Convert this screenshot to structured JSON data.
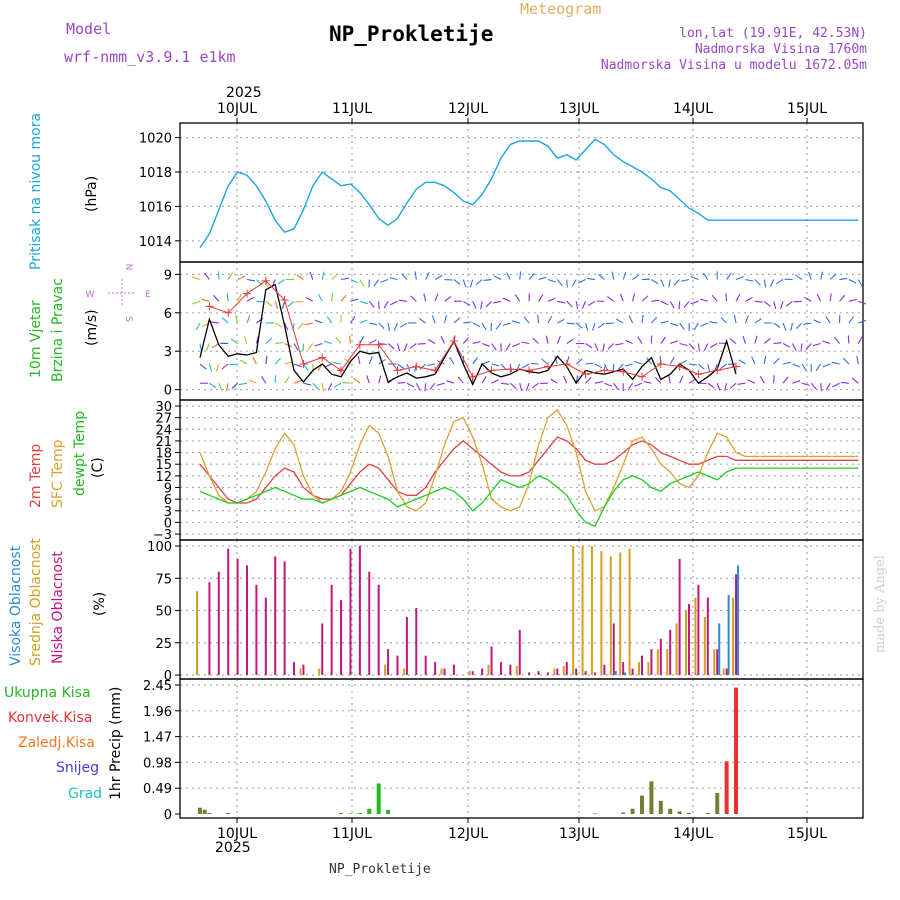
{
  "header": {
    "model_label": "Model",
    "model_name": "wrf-nmm_v3.9.1 e1km",
    "station": "NP_Prokletije",
    "meteogram": "Meteogram",
    "lonlat": "lon,lat (19.91E, 42.53N)",
    "elevation": "Nadmorska Visina 1760m",
    "model_elevation": "Nadmorska Visina u modelu 1672.05m",
    "footer_station": "NP_Prokletije",
    "watermark": "made by Angel"
  },
  "colors": {
    "pressure": "#1aa6e0",
    "wind_speed": "#000000",
    "gust": "#e83a3a",
    "temp2m": "#e04040",
    "sfc_temp": "#e0a030",
    "dewpoint": "#22cc22",
    "high_cloud": "#2e8bd8",
    "mid_cloud": "#d4a020",
    "low_cloud": "#c0167e",
    "total_precip": "#22b822",
    "conv_precip": "#e83030",
    "strat_precip": "#f07820",
    "snow": "#4040d8",
    "hail": "#22c0c0",
    "precip_bar": "#708030"
  },
  "time_axis": {
    "top_year": "2025",
    "bottom_year": "2025",
    "days": [
      "10JUL",
      "11JUL",
      "12JUL",
      "13JUL",
      "14JUL",
      "15JUL"
    ]
  },
  "panels": {
    "pressure": {
      "labels": [
        "Pritisak na nivou mora"
      ],
      "unit": "(hPa)"
    },
    "wind": {
      "labels": [
        "10m Vjetar",
        "Brzina i Pravac"
      ],
      "unit": "(m/s)",
      "compass": {
        "n": "N",
        "s": "S",
        "e": "E",
        "w": "W"
      }
    },
    "temp": {
      "labels": [
        "2m Temp",
        "SFC Temp",
        "dewpt Temp"
      ],
      "unit": "(C)"
    },
    "cloud": {
      "labels": [
        "Visoka Oblacnost",
        "Srednja Oblacnost",
        "Niska Oblacnost"
      ],
      "unit": "(%)"
    },
    "precip": {
      "labels": [
        "Ukupna Kisa",
        "Konvek.Kisa",
        "Zaledj.Kisa",
        "Snijeg",
        "Grad"
      ],
      "unit": "1hr Precip (mm)"
    }
  },
  "chart_data": [
    {
      "type": "line",
      "name": "pressure",
      "ylim": [
        1013,
        1020.5
      ],
      "yticks": [
        "1014",
        "1016",
        "1018",
        "1020"
      ],
      "x_hours": [
        0,
        2,
        4,
        6,
        8,
        10,
        12,
        14,
        16,
        18,
        20,
        22,
        24,
        26,
        28,
        30,
        32,
        34,
        36,
        38,
        40,
        42,
        44,
        46,
        48,
        50,
        52,
        54,
        56,
        58,
        60,
        62,
        64,
        66,
        68,
        70,
        72,
        74,
        76,
        78,
        80,
        82,
        84,
        86,
        88,
        90,
        92,
        94,
        96,
        98,
        100,
        102,
        104,
        106,
        108,
        110,
        112,
        114,
        116,
        118,
        120,
        122,
        124,
        126,
        128,
        130,
        132,
        134,
        136,
        138,
        140
      ],
      "values": [
        1013.6,
        1014.4,
        1015.8,
        1017.2,
        1018.0,
        1017.8,
        1017.2,
        1016.3,
        1015.2,
        1014.5,
        1014.7,
        1015.8,
        1017.2,
        1018.0,
        1017.6,
        1017.2,
        1017.3,
        1016.8,
        1016.1,
        1015.3,
        1014.9,
        1015.3,
        1016.2,
        1017.0,
        1017.4,
        1017.4,
        1017.2,
        1016.8,
        1016.3,
        1016.1,
        1016.7,
        1017.6,
        1018.8,
        1019.6,
        1019.8,
        1019.8,
        1019.8,
        1019.5,
        1018.8,
        1019.0,
        1018.7,
        1019.3,
        1019.9,
        1019.6,
        1019.0,
        1018.6,
        1018.3,
        1018.0,
        1017.6,
        1017.1,
        1016.9,
        1016.4,
        1015.9,
        1015.6,
        1015.2,
        1015.2,
        1015.2,
        1015.2,
        1015.2,
        1015.2,
        1015.2,
        1015.2,
        1015.2,
        1015.2,
        1015.2,
        1015.2,
        1015.2,
        1015.2,
        1015.2,
        1015.2,
        1015.2
      ]
    },
    {
      "type": "line",
      "name": "wind",
      "ylim": [
        -0.5,
        9.5
      ],
      "yticks": [
        "0",
        "3",
        "6",
        "9"
      ],
      "series": [
        {
          "name": "10m Vjetar",
          "x_hours": [
            0,
            2,
            4,
            6,
            8,
            10,
            12,
            14,
            16,
            18,
            20,
            22,
            24,
            26,
            28,
            30,
            32,
            34,
            36,
            38,
            40,
            42,
            44,
            46,
            48,
            50,
            52,
            54,
            56,
            58,
            60,
            62,
            64,
            66,
            68,
            70,
            72,
            74,
            76,
            78,
            80,
            82,
            84,
            86,
            88,
            90,
            92,
            94,
            96,
            98,
            100,
            102,
            104,
            106,
            108,
            110,
            112,
            114
          ],
          "values": [
            2.5,
            5.5,
            3.5,
            2.6,
            2.8,
            2.7,
            2.9,
            7.8,
            8.2,
            5.0,
            1.5,
            0.6,
            1.5,
            2.0,
            1.2,
            1.0,
            2.2,
            3.0,
            2.8,
            2.9,
            0.6,
            1.0,
            1.3,
            0.9,
            1.0,
            1.2,
            2.5,
            3.8,
            2.0,
            0.4,
            2.0,
            1.3,
            1.0,
            1.2,
            1.6,
            1.4,
            1.3,
            1.5,
            2.6,
            1.8,
            0.5,
            1.5,
            1.3,
            1.2,
            1.4,
            1.6,
            0.8,
            1.8,
            2.5,
            0.8,
            1.2,
            2.0,
            1.5,
            0.5,
            1.0,
            1.6,
            3.8,
            1.2
          ]
        },
        {
          "name": "gust",
          "x_hours": [
            2,
            6,
            10,
            14,
            18,
            22,
            26,
            30,
            34,
            38,
            42,
            46,
            50,
            54,
            58,
            62,
            66,
            70,
            74,
            78,
            82,
            86,
            90,
            94,
            98,
            102,
            106,
            110,
            114
          ],
          "values": [
            6.5,
            6.0,
            7.5,
            8.5,
            7.0,
            2.0,
            2.5,
            1.5,
            3.5,
            3.5,
            1.5,
            1.8,
            1.5,
            3.8,
            1.0,
            1.5,
            1.6,
            1.5,
            1.8,
            2.0,
            1.2,
            1.5,
            1.4,
            1.0,
            2.0,
            1.8,
            1.2,
            1.5,
            1.8
          ]
        }
      ]
    },
    {
      "type": "line",
      "name": "temperature",
      "ylim": [
        -3.5,
        30
      ],
      "yticks": [
        "−3",
        "0",
        "3",
        "6",
        "9",
        "12",
        "15",
        "18",
        "21",
        "24",
        "27",
        "30"
      ],
      "x_hours": [
        0,
        2,
        4,
        6,
        8,
        10,
        12,
        14,
        16,
        18,
        20,
        22,
        24,
        26,
        28,
        30,
        32,
        34,
        36,
        38,
        40,
        42,
        44,
        46,
        48,
        50,
        52,
        54,
        56,
        58,
        60,
        62,
        64,
        66,
        68,
        70,
        72,
        74,
        76,
        78,
        80,
        82,
        84,
        86,
        88,
        90,
        92,
        94,
        96,
        98,
        100,
        102,
        104,
        106,
        108,
        110,
        112,
        114,
        116,
        118,
        120,
        122,
        124,
        126,
        128,
        130,
        132,
        134,
        136,
        138,
        140
      ],
      "series": [
        {
          "name": "2m Temp",
          "values": [
            15,
            12,
            9,
            6,
            5,
            5,
            6,
            9,
            12,
            14,
            13,
            9,
            7,
            6,
            6,
            7,
            10,
            13,
            15,
            14,
            11,
            8,
            7,
            7,
            9,
            13,
            16,
            19,
            21,
            19,
            17,
            15,
            13,
            12,
            12,
            13,
            16,
            19,
            22,
            21,
            19,
            16,
            15,
            15,
            16,
            18,
            20,
            21,
            20,
            18,
            17,
            16,
            15,
            15,
            16,
            17,
            17,
            16,
            16,
            16,
            16,
            16,
            16,
            16,
            16,
            16,
            16,
            16,
            16,
            16,
            16
          ]
        },
        {
          "name": "SFC Temp",
          "values": [
            18,
            12,
            7,
            5,
            5,
            6,
            8,
            13,
            19,
            23,
            20,
            12,
            7,
            5,
            6,
            8,
            13,
            20,
            25,
            23,
            17,
            8,
            4,
            3,
            5,
            12,
            20,
            26,
            27,
            22,
            15,
            6,
            4,
            3,
            4,
            10,
            20,
            27,
            29,
            25,
            18,
            8,
            3,
            4,
            9,
            15,
            21,
            22,
            19,
            15,
            13,
            10,
            9,
            12,
            18,
            23,
            22,
            18,
            17,
            17,
            17,
            17,
            17,
            17,
            17,
            17,
            17,
            17,
            17,
            17,
            17
          ]
        },
        {
          "name": "dewpt Temp",
          "values": [
            8,
            7,
            6,
            5,
            5,
            6,
            7,
            8,
            9,
            8,
            7,
            6,
            6,
            5,
            6,
            7,
            8,
            9,
            8,
            7,
            6,
            4,
            5,
            6,
            7,
            8,
            9,
            8,
            6,
            3,
            5,
            8,
            11,
            10,
            9,
            10,
            12,
            11,
            9,
            7,
            3,
            0,
            -1,
            4,
            8,
            11,
            12,
            11,
            9,
            8,
            10,
            11,
            12,
            13,
            12,
            11,
            13,
            14,
            14,
            14,
            14,
            14,
            14,
            14,
            14,
            14,
            14,
            14,
            14,
            14,
            14
          ]
        }
      ]
    },
    {
      "type": "bar",
      "name": "cloud",
      "ylim": [
        0,
        100
      ],
      "yticks": [
        "0",
        "25",
        "50",
        "75",
        "100"
      ],
      "series": [
        {
          "name": "Niska Oblacnost",
          "x_hours": [
            2,
            4,
            6,
            8,
            10,
            12,
            14,
            16,
            18,
            20,
            22,
            26,
            28,
            30,
            32,
            34,
            36,
            38,
            40,
            42,
            44,
            46,
            48,
            50,
            52,
            54,
            58,
            60,
            62,
            64,
            66,
            68,
            70,
            72,
            74,
            76,
            78,
            80,
            82,
            84,
            86,
            88,
            90,
            92,
            94,
            96,
            98,
            100,
            102,
            104,
            106,
            108,
            110,
            112,
            114
          ],
          "values": [
            72,
            80,
            98,
            90,
            85,
            70,
            60,
            92,
            88,
            10,
            8,
            40,
            70,
            58,
            98,
            100,
            80,
            70,
            20,
            15,
            45,
            52,
            15,
            10,
            5,
            8,
            3,
            5,
            22,
            10,
            8,
            35,
            2,
            3,
            2,
            5,
            10,
            5,
            3,
            2,
            8,
            40,
            10,
            5,
            15,
            20,
            28,
            35,
            90,
            55,
            70,
            60,
            20,
            5,
            78
          ]
        },
        {
          "name": "Srednja Oblacnost",
          "x_hours": [
            0,
            22,
            26,
            40,
            44,
            52,
            58,
            62,
            68,
            76,
            78,
            80,
            82,
            84,
            86,
            88,
            90,
            92,
            94,
            96,
            98,
            100,
            102,
            104,
            106,
            108,
            110,
            112,
            114
          ],
          "values": [
            65,
            5,
            5,
            8,
            5,
            5,
            3,
            8,
            7,
            5,
            7,
            100,
            100,
            100,
            96,
            92,
            95,
            98,
            10,
            10,
            20,
            20,
            40,
            50,
            60,
            45,
            20,
            5,
            60
          ]
        },
        {
          "name": "Visoka Oblacnost",
          "x_hours": [
            88,
            90,
            110,
            112,
            114
          ],
          "values": [
            3,
            2,
            40,
            62,
            85
          ]
        }
      ]
    },
    {
      "type": "bar",
      "name": "precip",
      "ylim": [
        0,
        2.45
      ],
      "yticks": [
        "0",
        "0.49",
        "0.98",
        "1.47",
        "1.96",
        "2.45"
      ],
      "x_hours": [
        0,
        1,
        2,
        4,
        6,
        8,
        10,
        12,
        14,
        16,
        18,
        20,
        22,
        24,
        26,
        28,
        30,
        32,
        34,
        36,
        38,
        40,
        42,
        44,
        46,
        48,
        50,
        52,
        54,
        56,
        58,
        60,
        62,
        64,
        66,
        68,
        70,
        72,
        74,
        76,
        78,
        80,
        82,
        84,
        86,
        88,
        90,
        92,
        94,
        96,
        98,
        100,
        102,
        104,
        106,
        108,
        110,
        112,
        114
      ],
      "values": [
        0.12,
        0.08,
        0.02,
        0,
        0.02,
        0,
        0,
        0,
        0,
        0,
        0,
        0,
        0,
        0,
        0,
        0,
        0.02,
        0.01,
        0.02,
        0.1,
        0.58,
        0.08,
        0,
        0,
        0,
        0,
        0,
        0,
        0,
        0,
        0,
        0,
        0,
        0,
        0,
        0,
        0,
        0,
        0,
        0,
        0,
        0,
        0,
        0.01,
        0,
        0,
        0.03,
        0.1,
        0.35,
        0.62,
        0.25,
        0.1,
        0.05,
        0.02,
        0,
        0.02,
        0.4,
        1.0,
        2.4
      ]
    }
  ]
}
